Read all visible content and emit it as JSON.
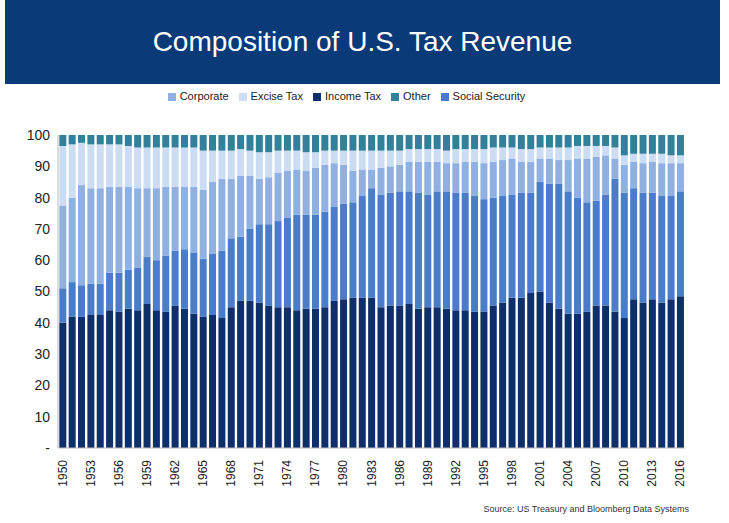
{
  "chart_data": {
    "type": "bar",
    "title": "Composition of U.S. Tax Revenue",
    "source": "Source: US Treasury and Bloomberg Data Systems",
    "stacked": true,
    "grid": false,
    "legend": "top",
    "categories": [
      "1950",
      null,
      null,
      "1953",
      null,
      null,
      "1956",
      null,
      null,
      "1959",
      null,
      null,
      "1962",
      null,
      null,
      "1965",
      null,
      null,
      "1968",
      null,
      null,
      "1971",
      null,
      null,
      "1974",
      null,
      null,
      "1977",
      null,
      null,
      "1980",
      null,
      null,
      "1983",
      null,
      null,
      "1986",
      null,
      null,
      "1989",
      null,
      null,
      "1992",
      null,
      null,
      "1995",
      null,
      null,
      "1998",
      null,
      null,
      "2001",
      null,
      null,
      "2004",
      null,
      null,
      "2007",
      null,
      null,
      "2010",
      null,
      null,
      "2013",
      null,
      null,
      "2016"
    ],
    "series": [
      {
        "name": "Income Tax",
        "color": "#0f2f6b",
        "values": [
          40,
          42,
          42,
          42.5,
          42.5,
          44,
          43.5,
          44.5,
          44,
          46,
          44,
          43.5,
          45.5,
          44.5,
          43,
          42,
          42.5,
          41.5,
          45,
          47,
          47,
          46.5,
          45.5,
          45,
          45,
          44,
          44.5,
          44.5,
          45,
          47,
          47.5,
          48,
          48,
          48,
          45,
          45.5,
          45.5,
          46,
          44.5,
          45,
          45,
          44.5,
          44,
          44,
          43.5,
          43.5,
          45.5,
          46.5,
          48,
          48,
          49.5,
          50,
          46.5,
          44.5,
          43,
          43,
          43.5,
          45.5,
          45.5,
          43.5,
          41.5,
          47.5,
          46.5,
          47.5,
          46.5,
          47.5,
          48.5
        ]
      },
      {
        "name": "Social Security",
        "color": "#4a7cc9",
        "values": [
          11,
          11,
          10,
          10,
          10,
          12,
          12.5,
          12.5,
          13.5,
          15,
          16,
          18,
          17.5,
          19,
          19.5,
          18.5,
          19.5,
          21.5,
          22,
          20.5,
          23,
          25,
          26,
          27.5,
          28.5,
          30.5,
          30,
          30,
          30.5,
          30,
          30.5,
          30.5,
          32.5,
          35,
          36,
          36,
          36.5,
          36,
          37,
          36,
          37,
          37.5,
          37.5,
          37.5,
          37,
          36,
          34.5,
          34,
          33,
          33.5,
          32,
          35,
          38,
          40,
          39,
          37,
          35,
          33.5,
          35.5,
          42.5,
          40,
          35.5,
          35,
          34,
          34,
          33,
          33.5
        ]
      },
      {
        "name": "Corporate",
        "color": "#8fb0e0",
        "values": [
          26.5,
          27,
          32,
          30.5,
          30.5,
          27.5,
          27.5,
          26.5,
          25.5,
          22,
          23,
          22,
          20.5,
          20,
          21,
          22,
          23,
          23,
          19,
          19.5,
          17,
          14.5,
          15,
          15.5,
          15,
          14.5,
          14,
          15,
          15,
          14,
          12.5,
          10,
          8.5,
          6,
          8.5,
          8.5,
          8.5,
          9.5,
          10,
          10.5,
          9.5,
          9,
          9.5,
          10,
          11,
          11.5,
          11.5,
          11.5,
          11.5,
          10,
          10,
          7.5,
          8,
          7.5,
          10,
          12.5,
          14,
          14,
          12.5,
          6.5,
          9,
          8.5,
          9.5,
          10,
          10.5,
          10.5,
          9
        ]
      },
      {
        "name": "Excise Tax",
        "color": "#cbdcf3",
        "values": [
          19,
          17,
          13.5,
          14,
          14,
          13.5,
          13.5,
          13,
          13,
          13,
          13,
          12.5,
          12.5,
          12.5,
          12.5,
          12.5,
          10,
          9,
          9,
          8.5,
          8,
          8.5,
          8,
          7,
          6.5,
          6,
          6,
          5,
          4.5,
          4,
          4.5,
          6.5,
          6,
          6,
          5.5,
          5,
          4.5,
          4,
          4,
          4,
          4,
          4,
          4.5,
          4,
          4,
          4.5,
          4.5,
          4,
          3.5,
          4,
          4,
          3.5,
          3.5,
          4,
          4,
          4,
          4,
          3.5,
          3,
          3.5,
          3,
          2.5,
          3,
          2.5,
          3,
          2.5,
          2.5
        ]
      },
      {
        "name": "Other",
        "color": "#32809a",
        "values": [
          3.5,
          3,
          2.5,
          3,
          3,
          3,
          3,
          3.5,
          4,
          4,
          4,
          4,
          4,
          4,
          4,
          5,
          5,
          5,
          5,
          4.5,
          5,
          5.5,
          5.5,
          5,
          5,
          5,
          5.5,
          5.5,
          5,
          5,
          5,
          5,
          5,
          5,
          5,
          5,
          5,
          4.5,
          4.5,
          4.5,
          4.5,
          5,
          4.5,
          4.5,
          4.5,
          4.5,
          4,
          4,
          4,
          4.5,
          4.5,
          4,
          4,
          4,
          4,
          3.5,
          3.5,
          3.5,
          3.5,
          4,
          6.5,
          6,
          6,
          6,
          6,
          6.5,
          6.5
        ]
      }
    ],
    "ylim": [
      0,
      100
    ],
    "yticks": [
      {
        "value": 0,
        "label": "-"
      },
      10,
      20,
      30,
      40,
      50,
      60,
      70,
      80,
      90,
      100
    ]
  }
}
